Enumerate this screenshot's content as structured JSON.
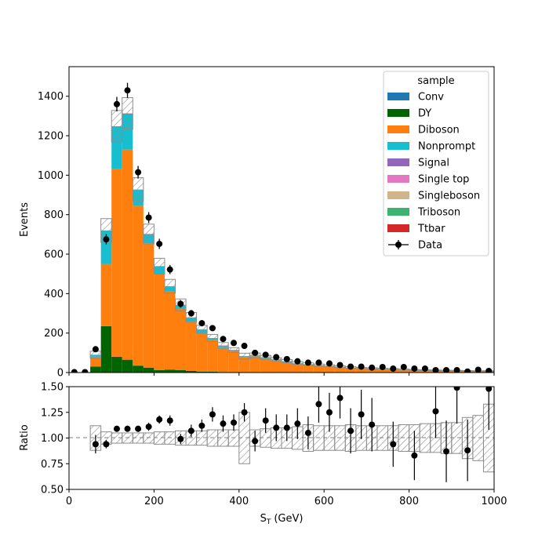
{
  "chart_data": {
    "type": "bar",
    "subtype": "stacked-histogram-with-ratio",
    "xlabel": "S",
    "xlabel_sub": "T",
    "xlabel_unit": "(GeV)",
    "ylabel_top": "Events",
    "ylabel_bottom": "Ratio",
    "xlim": [
      0,
      1000
    ],
    "ylim_top": [
      0,
      1550
    ],
    "ylim_bottom": [
      0.5,
      1.5
    ],
    "x_ticks": [
      "0",
      "200",
      "400",
      "600",
      "800",
      "1000"
    ],
    "y_ticks_top": [
      "0",
      "200",
      "400",
      "600",
      "800",
      "1000",
      "1200",
      "1400"
    ],
    "y_ticks_bottom": [
      "0.50",
      "0.75",
      "1.00",
      "1.25",
      "1.50"
    ],
    "legend": {
      "title": "sample",
      "placement": "top-right",
      "entries": [
        {
          "label": "Conv",
          "color": "#1f77b4"
        },
        {
          "label": "DY",
          "color": "#006400"
        },
        {
          "label": "Diboson",
          "color": "#ff7f0e"
        },
        {
          "label": "Nonprompt",
          "color": "#17becf"
        },
        {
          "label": "Signal",
          "color": "#9467bd"
        },
        {
          "label": "Single top",
          "color": "#e377c2"
        },
        {
          "label": "Singleboson",
          "color": "#d2b48c"
        },
        {
          "label": "Triboson",
          "color": "#3cb371"
        },
        {
          "label": "Ttbar",
          "color": "#d62728"
        },
        {
          "label": "Data",
          "color": "#000000"
        }
      ]
    },
    "bin_edges": [
      50,
      75,
      100,
      125,
      150,
      175,
      200,
      225,
      250,
      275,
      300,
      325,
      350,
      375,
      400,
      425,
      450,
      475,
      500,
      525,
      550,
      575,
      600,
      625,
      650,
      675,
      700,
      725,
      750,
      775,
      800,
      825,
      850,
      875,
      900,
      925,
      950,
      975,
      1000
    ],
    "series": [
      {
        "name": "DY",
        "color": "#006400",
        "values": [
          30,
          235,
          80,
          65,
          35,
          25,
          12,
          15,
          12,
          8,
          5,
          4,
          3,
          2,
          2,
          2,
          1,
          1,
          1,
          1,
          1,
          1,
          1,
          1,
          0,
          0,
          0,
          0,
          0,
          0,
          0,
          0,
          0,
          0,
          0,
          0,
          0,
          0
        ]
      },
      {
        "name": "Diboson",
        "color": "#ff7f0e",
        "values": [
          50,
          315,
          950,
          1065,
          810,
          630,
          485,
          395,
          310,
          250,
          195,
          160,
          125,
          105,
          75,
          80,
          72,
          62,
          55,
          46,
          40,
          36,
          32,
          28,
          25,
          22,
          20,
          18,
          16,
          14,
          12,
          11,
          10,
          9,
          8,
          7,
          6,
          6
        ]
      },
      {
        "name": "Nonprompt",
        "color": "#17becf",
        "values": [
          10,
          170,
          215,
          180,
          80,
          45,
          40,
          25,
          20,
          20,
          18,
          10,
          8,
          6,
          5,
          4,
          3,
          3,
          2,
          2,
          2,
          1,
          1,
          1,
          1,
          1,
          1,
          1,
          1,
          1,
          1,
          1,
          1,
          1,
          1,
          1,
          1,
          1
        ]
      },
      {
        "name": "Conv",
        "color": "#1f77b4",
        "values": [
          0,
          0,
          2,
          2,
          1,
          1,
          1,
          1,
          0,
          0,
          0,
          0,
          0,
          0,
          0,
          0,
          0,
          0,
          0,
          0,
          0,
          0,
          0,
          0,
          0,
          0,
          0,
          0,
          0,
          0,
          0,
          0,
          0,
          0,
          0,
          0,
          0,
          0
        ]
      },
      {
        "name": "Ttbar",
        "color": "#d62728",
        "values": [
          0,
          0,
          1,
          1,
          1,
          1,
          1,
          1,
          1,
          1,
          1,
          1,
          1,
          1,
          1,
          1,
          1,
          1,
          0,
          0,
          0,
          0,
          0,
          0,
          0,
          0,
          0,
          0,
          0,
          0,
          0,
          0,
          0,
          0,
          0,
          0,
          0,
          0
        ]
      }
    ],
    "mc_uncertainty": [
      18,
      60,
      80,
      80,
      60,
      50,
      40,
      35,
      30,
      25,
      20,
      18,
      15,
      12,
      15,
      12,
      10,
      8,
      8,
      7,
      6,
      5,
      5,
      4,
      4,
      3,
      3,
      3,
      3,
      3,
      2,
      2,
      2,
      2,
      2,
      2,
      2,
      2
    ],
    "data": {
      "x": [
        12.5,
        37.5,
        62.5,
        87.5,
        112.5,
        137.5,
        162.5,
        187.5,
        212.5,
        237.5,
        262.5,
        287.5,
        312.5,
        337.5,
        362.5,
        387.5,
        412.5,
        437.5,
        462.5,
        487.5,
        512.5,
        537.5,
        562.5,
        587.5,
        612.5,
        637.5,
        662.5,
        687.5,
        712.5,
        737.5,
        762.5,
        787.5,
        812.5,
        837.5,
        862.5,
        887.5,
        912.5,
        937.5,
        962.5,
        987.5
      ],
      "y": [
        2,
        2,
        118,
        675,
        1360,
        1430,
        1015,
        785,
        652,
        522,
        348,
        300,
        250,
        225,
        170,
        150,
        135,
        100,
        90,
        78,
        68,
        57,
        50,
        50,
        46,
        38,
        30,
        30,
        25,
        28,
        20,
        28,
        20,
        20,
        12,
        12,
        12,
        5,
        14,
        8
      ],
      "err": [
        2,
        2,
        11,
        26,
        37,
        38,
        32,
        28,
        26,
        23,
        19,
        17,
        16,
        15,
        13,
        12,
        12,
        10,
        9,
        9,
        8,
        8,
        7,
        7,
        7,
        6,
        5,
        5,
        5,
        5,
        4,
        5,
        4,
        4,
        3,
        3,
        3,
        2,
        4,
        3
      ]
    },
    "ratio": {
      "x": [
        62.5,
        87.5,
        112.5,
        137.5,
        162.5,
        187.5,
        212.5,
        237.5,
        262.5,
        287.5,
        312.5,
        337.5,
        362.5,
        387.5,
        412.5,
        437.5,
        462.5,
        487.5,
        512.5,
        537.5,
        562.5,
        587.5,
        612.5,
        637.5,
        662.5,
        687.5,
        712.5,
        762.5,
        812.5,
        862.5,
        887.5,
        912.5,
        937.5,
        987.5
      ],
      "y": [
        0.94,
        0.94,
        1.09,
        1.09,
        1.09,
        1.11,
        1.18,
        1.17,
        0.99,
        1.07,
        1.12,
        1.23,
        1.14,
        1.15,
        1.25,
        0.97,
        1.17,
        1.1,
        1.1,
        1.14,
        1.05,
        1.33,
        1.25,
        1.39,
        1.07,
        1.23,
        1.13,
        0.94,
        0.83,
        1.26,
        0.87,
        1.49,
        0.88,
        1.48
      ],
      "err": [
        0.09,
        0.04,
        0.03,
        0.03,
        0.03,
        0.04,
        0.04,
        0.05,
        0.05,
        0.06,
        0.06,
        0.07,
        0.08,
        0.08,
        0.09,
        0.1,
        0.12,
        0.13,
        0.13,
        0.15,
        0.16,
        0.18,
        0.19,
        0.2,
        0.22,
        0.24,
        0.26,
        0.22,
        0.24,
        0.26,
        0.3,
        0.35,
        0.3,
        0.4
      ]
    },
    "ratio_uncertainty_band": [
      0.12,
      0.06,
      0.05,
      0.05,
      0.05,
      0.05,
      0.06,
      0.06,
      0.07,
      0.07,
      0.07,
      0.08,
      0.08,
      0.08,
      0.25,
      0.08,
      0.09,
      0.1,
      0.1,
      0.11,
      0.13,
      0.12,
      0.12,
      0.12,
      0.13,
      0.12,
      0.12,
      0.12,
      0.12,
      0.13,
      0.13,
      0.14,
      0.14,
      0.15,
      0.15,
      0.2,
      0.22,
      0.33
    ]
  }
}
